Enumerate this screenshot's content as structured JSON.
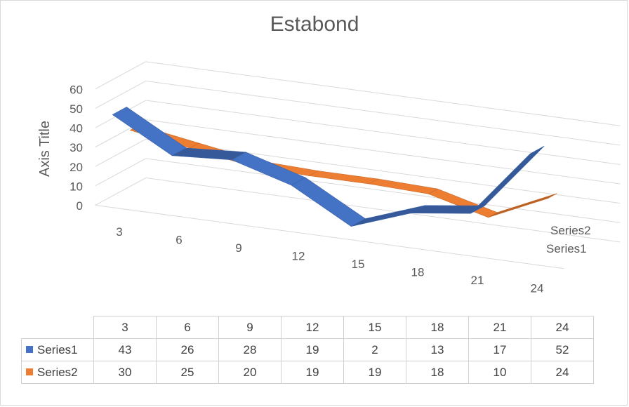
{
  "chart_data": {
    "type": "line",
    "style": "3d-line",
    "title": "Estabond",
    "ylabel": "Axis Title",
    "xlabel": "",
    "categories": [
      "3",
      "6",
      "9",
      "12",
      "15",
      "18",
      "21",
      "24"
    ],
    "ylim": [
      0,
      60
    ],
    "yticks": [
      "0",
      "10",
      "20",
      "30",
      "40",
      "50",
      "60"
    ],
    "grid": true,
    "depth_labels": [
      "Series2",
      "Series1"
    ],
    "series": [
      {
        "name": "Series1",
        "color": "#4472c4",
        "values": [
          43,
          26,
          28,
          19,
          2,
          13,
          17,
          52
        ]
      },
      {
        "name": "Series2",
        "color": "#ed7d31",
        "values": [
          30,
          25,
          20,
          19,
          19,
          18,
          10,
          24
        ]
      }
    ],
    "table": {
      "header": [
        "3",
        "6",
        "9",
        "12",
        "15",
        "18",
        "21",
        "24"
      ],
      "rows": [
        {
          "name": "Series1",
          "color": "#4472c4",
          "values": [
            "43",
            "26",
            "28",
            "19",
            "2",
            "13",
            "17",
            "52"
          ]
        },
        {
          "name": "Series2",
          "color": "#ed7d31",
          "values": [
            "30",
            "25",
            "20",
            "19",
            "19",
            "18",
            "10",
            "24"
          ]
        }
      ]
    }
  }
}
